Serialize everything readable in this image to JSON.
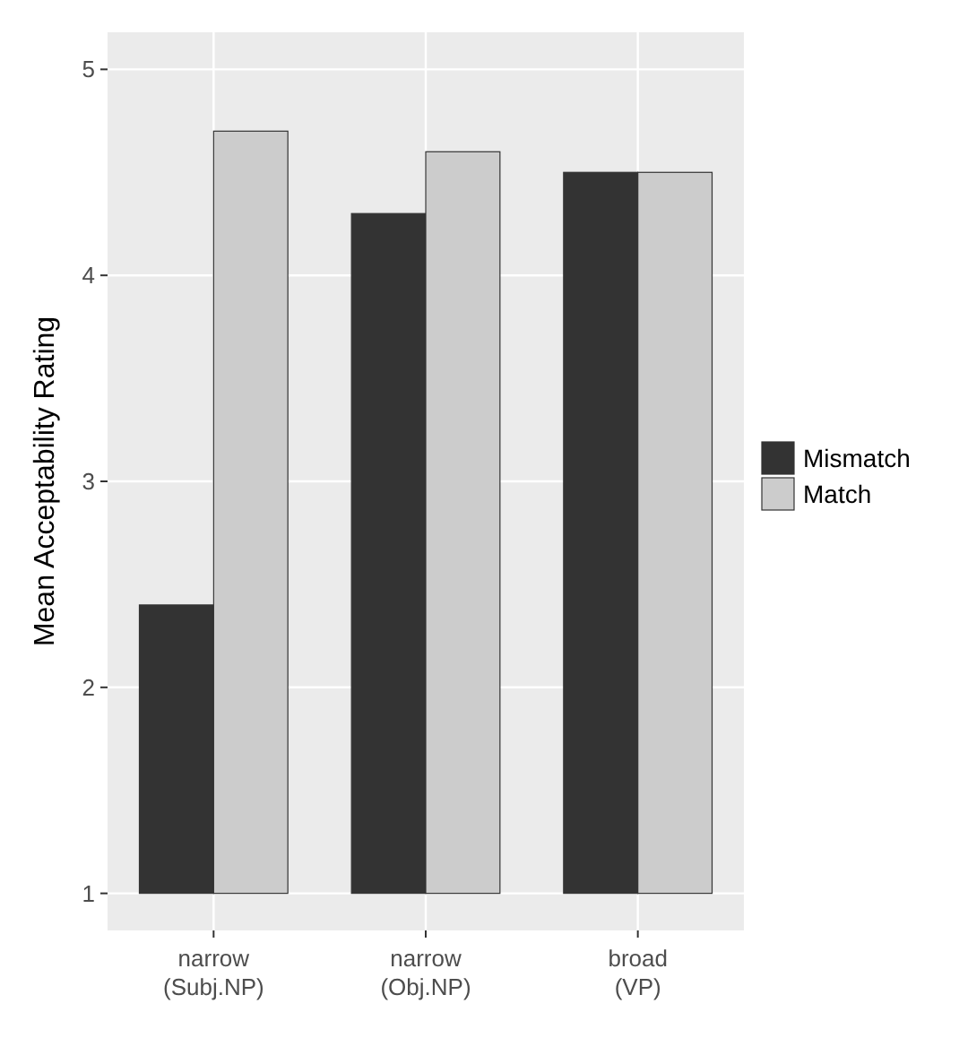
{
  "chart_data": {
    "type": "bar",
    "ylabel": "Mean Acceptability Rating",
    "categories": [
      "narrow\n(Subj.NP)",
      "narrow\n(Obj.NP)",
      "broad\n(VP)"
    ],
    "series": [
      {
        "name": "Mismatch",
        "color": "#333333",
        "base": [
          1,
          1,
          1
        ],
        "values": [
          1.4,
          3.3,
          3.5
        ]
      },
      {
        "name": "Match",
        "color": "#cccccc",
        "base": [
          1,
          1,
          1
        ],
        "values": [
          3.7,
          3.6,
          3.5
        ]
      }
    ],
    "ylim": [
      0.82,
      5.18
    ],
    "yticks": [
      1,
      2,
      3,
      4,
      5
    ],
    "grid": true,
    "legend": "right"
  }
}
